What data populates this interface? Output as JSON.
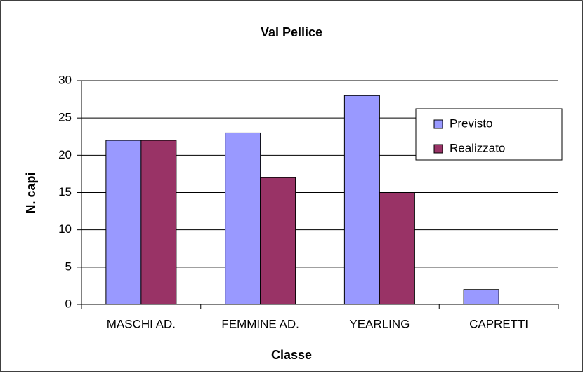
{
  "chart_data": {
    "type": "bar",
    "title": "Val Pellice",
    "x_label": "Classe",
    "y_label": "N. capi",
    "categories": [
      "MASCHI AD.",
      "FEMMINE AD.",
      "YEARLING",
      "CAPRETTI"
    ],
    "series": [
      {
        "name": "Previsto",
        "color": "#9999ff",
        "values": [
          22,
          23,
          28,
          2
        ]
      },
      {
        "name": "Realizzato",
        "color": "#993366",
        "values": [
          22,
          17,
          15,
          0
        ]
      }
    ],
    "ylim": [
      0,
      30
    ],
    "yticks": [
      0,
      5,
      10,
      15,
      20,
      25,
      30
    ],
    "grid": true,
    "legend": "right"
  }
}
